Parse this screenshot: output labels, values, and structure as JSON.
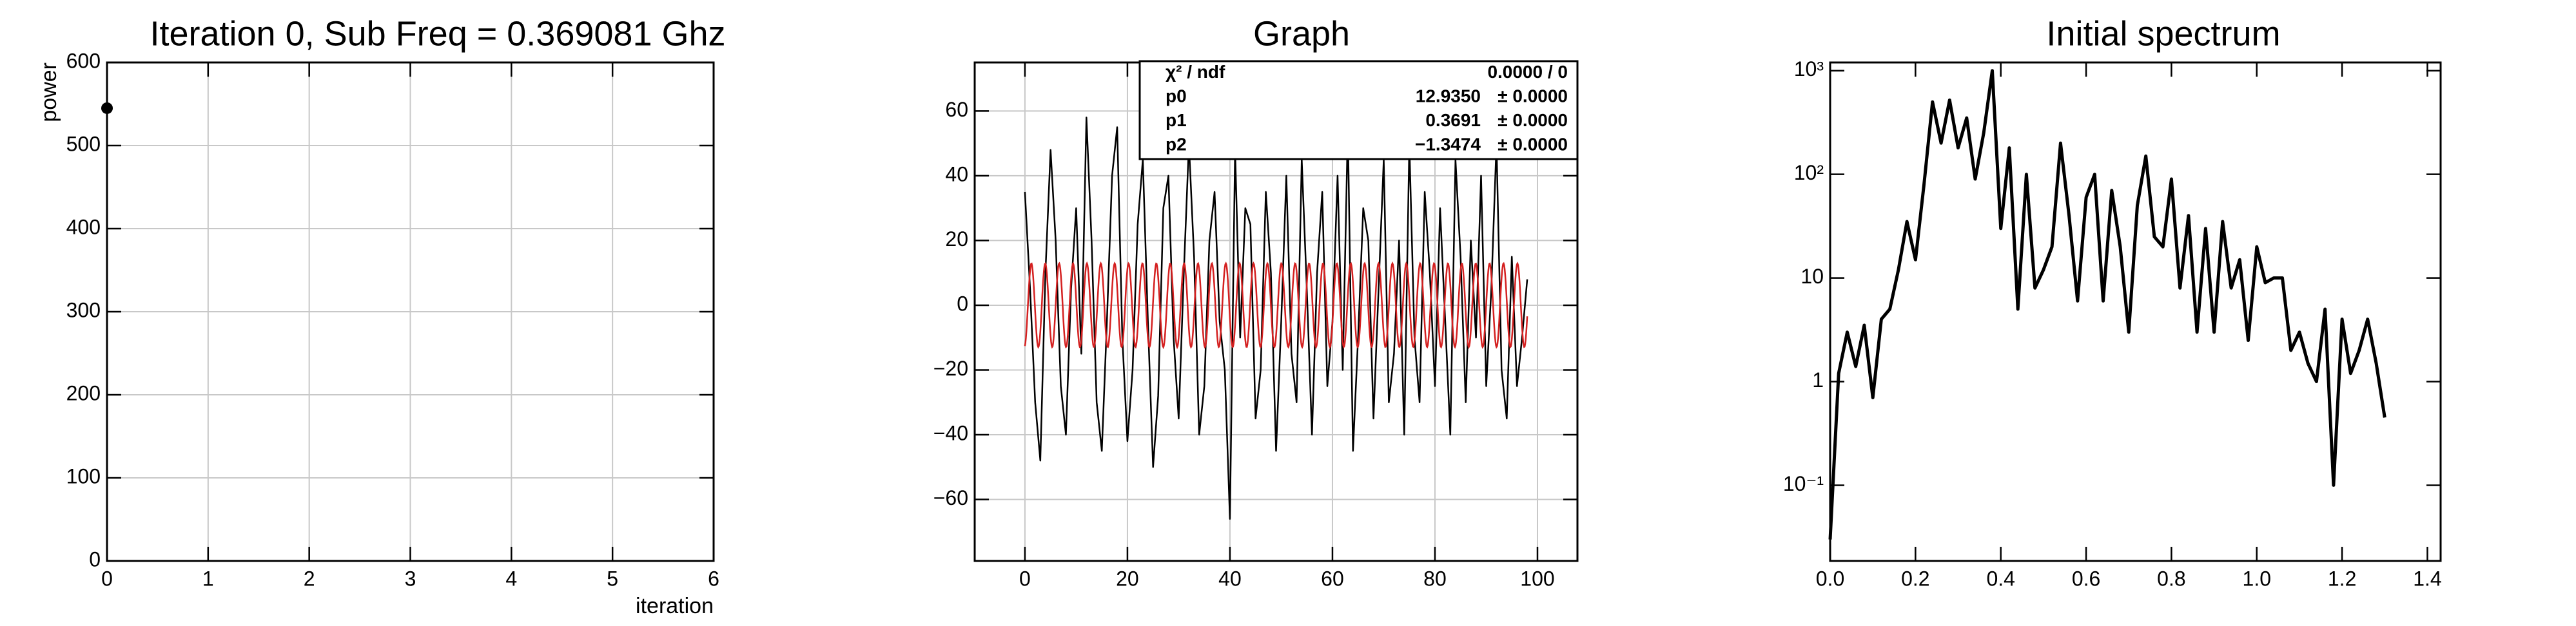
{
  "chart_data": [
    {
      "type": "scatter",
      "title": "Iteration 0, Sub Freq = 0.369081 Ghz",
      "x_label": "iteration",
      "y_label": "power",
      "x": [
        0
      ],
      "values": [
        545
      ],
      "color": "#000000",
      "xlim": [
        0,
        6
      ],
      "xticks": [
        0,
        1,
        2,
        3,
        4,
        5,
        6
      ],
      "ylim": [
        0,
        600
      ],
      "yticks": [
        0,
        100,
        200,
        300,
        400,
        500,
        600
      ],
      "grid": true
    },
    {
      "type": "line",
      "title": "Graph",
      "color": "#000000",
      "fit_color": "#d42020",
      "x": [
        0,
        1,
        2,
        3,
        4,
        5,
        6,
        7,
        8,
        9,
        10,
        11,
        12,
        13,
        14,
        15,
        16,
        17,
        18,
        19,
        20,
        21,
        22,
        23,
        24,
        25,
        26,
        27,
        28,
        29,
        30,
        31,
        32,
        33,
        34,
        35,
        36,
        37,
        38,
        39,
        40,
        41,
        42,
        43,
        44,
        45,
        46,
        47,
        48,
        49,
        50,
        51,
        52,
        53,
        54,
        55,
        56,
        57,
        58,
        59,
        60,
        61,
        62,
        63,
        64,
        65,
        66,
        67,
        68,
        69,
        70,
        71,
        72,
        73,
        74,
        75,
        76,
        77,
        78,
        79,
        80,
        81,
        82,
        83,
        84,
        85,
        86,
        87,
        88,
        89,
        90,
        91,
        92,
        93,
        94,
        95,
        96,
        97,
        98
      ],
      "values": [
        35,
        5,
        -30,
        -48,
        10,
        48,
        20,
        -25,
        -40,
        5,
        30,
        -15,
        58,
        20,
        -30,
        -45,
        -5,
        40,
        55,
        -10,
        -42,
        -20,
        25,
        45,
        -5,
        -50,
        -28,
        30,
        40,
        -10,
        -35,
        10,
        50,
        15,
        -40,
        -25,
        20,
        35,
        -5,
        -20,
        -66,
        48,
        -10,
        30,
        25,
        -35,
        -20,
        35,
        10,
        -45,
        -5,
        40,
        -15,
        -30,
        45,
        5,
        -40,
        10,
        35,
        -25,
        -5,
        40,
        -20,
        55,
        -45,
        -10,
        30,
        20,
        -35,
        5,
        45,
        -30,
        -15,
        20,
        -40,
        50,
        -10,
        -30,
        35,
        10,
        -25,
        30,
        -5,
        -40,
        45,
        15,
        -30,
        20,
        -10,
        40,
        -25,
        5,
        50,
        -20,
        -35,
        15,
        -25,
        -10,
        8
      ],
      "xlim": [
        -9.8,
        107.8
      ],
      "xticks": [
        0,
        20,
        40,
        60,
        80,
        100
      ],
      "ylim": [
        -79,
        75
      ],
      "yticks": [
        {
          "value": -60,
          "label": "−60"
        },
        {
          "value": -40,
          "label": "−40"
        },
        {
          "value": -20,
          "label": "−20"
        },
        0,
        20,
        40,
        60
      ],
      "grid": true,
      "stats": {
        "header_name": "χ² / ndf",
        "header_value": "0.0000 / 0",
        "names": [
          "p0",
          "p1",
          "p2"
        ],
        "values": [
          12.935,
          0.3691,
          -1.3474
        ],
        "value_labels": [
          "12.9350",
          "0.3691",
          "−1.3474"
        ],
        "errors": [
          0,
          0,
          0
        ],
        "error_labels": [
          "± 0.0000",
          "± 0.0000",
          "± 0.0000"
        ]
      }
    },
    {
      "type": "line",
      "title": "Initial spectrum",
      "color": "#000000",
      "log_y": true,
      "x": [
        0,
        0.02,
        0.04,
        0.06,
        0.08,
        0.1,
        0.12,
        0.14,
        0.16,
        0.18,
        0.2,
        0.22,
        0.24,
        0.26,
        0.28,
        0.3,
        0.32,
        0.34,
        0.36,
        0.38,
        0.4,
        0.42,
        0.44,
        0.46,
        0.48,
        0.5,
        0.52,
        0.54,
        0.56,
        0.58,
        0.6,
        0.62,
        0.64,
        0.66,
        0.68,
        0.7,
        0.72,
        0.74,
        0.76,
        0.78,
        0.8,
        0.82,
        0.84,
        0.86,
        0.88,
        0.9,
        0.92,
        0.94,
        0.96,
        0.98,
        1,
        1.02,
        1.04,
        1.06,
        1.08,
        1.1,
        1.12,
        1.14,
        1.16,
        1.18,
        1.2,
        1.22,
        1.24,
        1.26,
        1.28,
        1.3
      ],
      "values": [
        0.03,
        1.2,
        3,
        1.4,
        3.5,
        0.7,
        4,
        5,
        12,
        35,
        15,
        80,
        500,
        200,
        520,
        180,
        350,
        90,
        250,
        1000,
        30,
        180,
        5,
        100,
        8,
        12,
        20,
        200,
        40,
        6,
        60,
        100,
        6,
        70,
        20,
        3,
        50,
        150,
        25,
        20,
        90,
        8,
        40,
        3,
        30,
        3,
        35,
        8,
        15,
        2.5,
        20,
        9,
        10,
        10,
        2,
        3,
        1.5,
        1,
        5,
        0.1,
        4,
        1.2,
        2,
        4,
        1.5,
        0.45
      ],
      "xlim": [
        0,
        1.431
      ],
      "xticks": [
        {
          "value": 0,
          "label": "0.0"
        },
        0.2,
        0.4,
        0.6,
        0.8,
        {
          "value": 1,
          "label": "1.0"
        },
        1.2,
        1.4
      ],
      "ylim": [
        0.0186,
        1200
      ],
      "yticks": [
        {
          "value": 0.1,
          "label": "10⁻¹"
        },
        1,
        10,
        {
          "value": 100,
          "label": "10²"
        },
        {
          "value": 1000,
          "label": "10³"
        }
      ],
      "grid": false
    }
  ]
}
